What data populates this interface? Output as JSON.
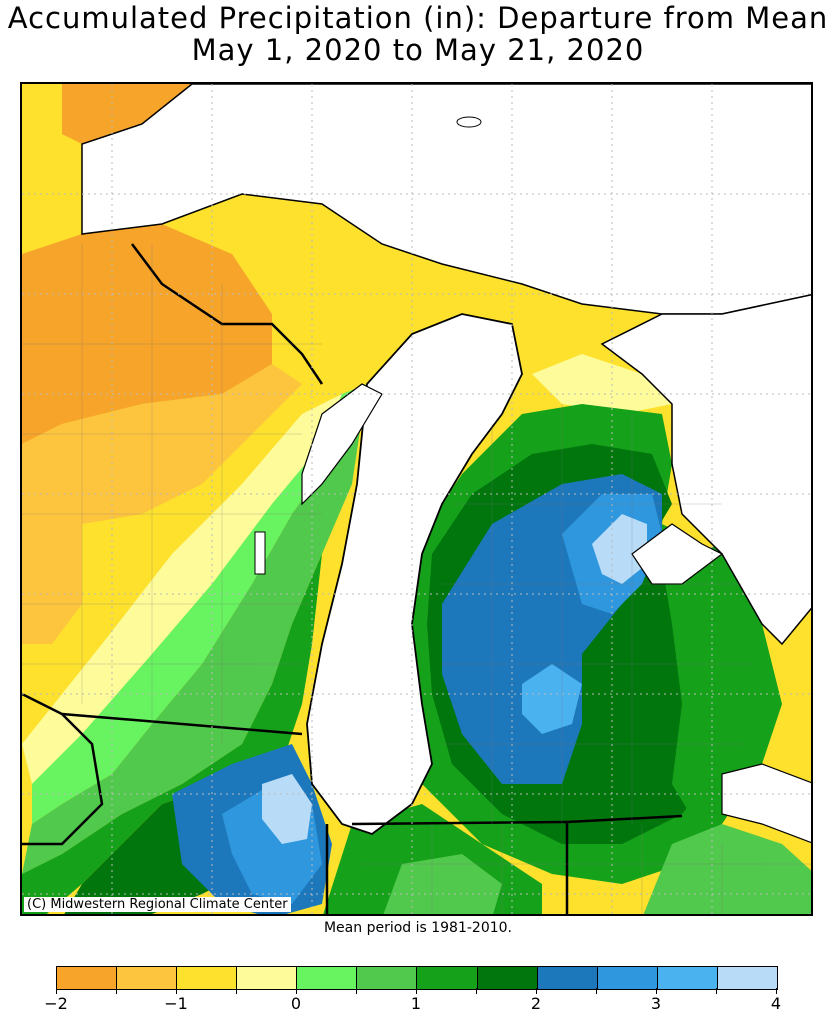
{
  "title_line1": "Accumulated Precipitation (in): Departure from Mean",
  "title_line2": "May 1, 2020 to May 21, 2020",
  "credit": "(C) Midwestern Regional Climate Center",
  "mean_note": "Mean period is 1981-2010.",
  "legend": {
    "colors": [
      "#f6a42a",
      "#fdc43e",
      "#fde12d",
      "#fefc9a",
      "#67f460",
      "#51c94c",
      "#16a11a",
      "#00760d",
      "#1d77bb",
      "#2f97de",
      "#4ab2ee",
      "#b8dcf8"
    ],
    "labels": [
      "-2",
      "-1",
      "0",
      "1",
      "2",
      "3",
      "4"
    ],
    "min": -2,
    "max": 4
  },
  "colors": {
    "water": "#ffffff",
    "outline": "#000000",
    "county_lines": "#777777"
  }
}
